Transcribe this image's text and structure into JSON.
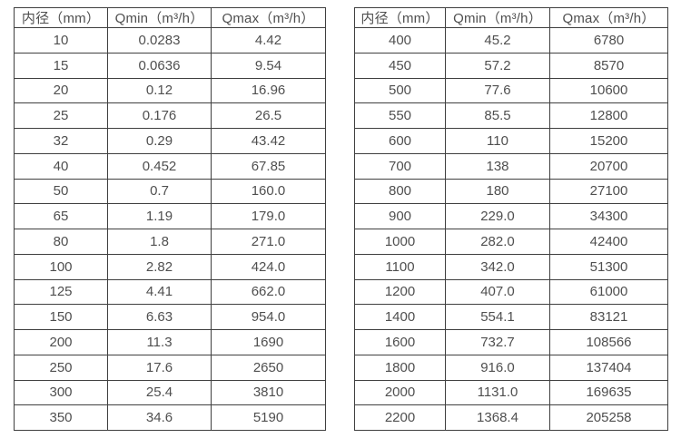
{
  "colors": {
    "background": "#ffffff",
    "table_border": "#3f3f3f",
    "text": "#4f4f4f"
  },
  "tables": [
    {
      "name": "flow-spec-small-diameters",
      "columns": [
        "内径（mm）",
        "Qmin（m³/h）",
        "Qmax（m³/h）"
      ],
      "rows": [
        [
          "10",
          "0.0283",
          "4.42"
        ],
        [
          "15",
          "0.0636",
          "9.54"
        ],
        [
          "20",
          "0.12",
          "16.96"
        ],
        [
          "25",
          "0.176",
          "26.5"
        ],
        [
          "32",
          "0.29",
          "43.42"
        ],
        [
          "40",
          "0.452",
          "67.85"
        ],
        [
          "50",
          "0.7",
          "160.0"
        ],
        [
          "65",
          "1.19",
          "179.0"
        ],
        [
          "80",
          "1.8",
          "271.0"
        ],
        [
          "100",
          "2.82",
          "424.0"
        ],
        [
          "125",
          "4.41",
          "662.0"
        ],
        [
          "150",
          "6.63",
          "954.0"
        ],
        [
          "200",
          "11.3",
          "1690"
        ],
        [
          "250",
          "17.6",
          "2650"
        ],
        [
          "300",
          "25.4",
          "3810"
        ],
        [
          "350",
          "34.6",
          "5190"
        ]
      ]
    },
    {
      "name": "flow-spec-large-diameters",
      "columns": [
        "内径（mm）",
        "Qmin（m³/h）",
        "Qmax（m³/h）"
      ],
      "rows": [
        [
          "400",
          "45.2",
          "6780"
        ],
        [
          "450",
          "57.2",
          "8570"
        ],
        [
          "500",
          "77.6",
          "10600"
        ],
        [
          "550",
          "85.5",
          "12800"
        ],
        [
          "600",
          "110",
          "15200"
        ],
        [
          "700",
          "138",
          "20700"
        ],
        [
          "800",
          "180",
          "27100"
        ],
        [
          "900",
          "229.0",
          "34300"
        ],
        [
          "1000",
          "282.0",
          "42400"
        ],
        [
          "1100",
          "342.0",
          "51300"
        ],
        [
          "1200",
          "407.0",
          "61000"
        ],
        [
          "1400",
          "554.1",
          "83121"
        ],
        [
          "1600",
          "732.7",
          "108566"
        ],
        [
          "1800",
          "916.0",
          "137404"
        ],
        [
          "2000",
          "1131.0",
          "169635"
        ],
        [
          "2200",
          "1368.4",
          "205258"
        ]
      ]
    }
  ]
}
